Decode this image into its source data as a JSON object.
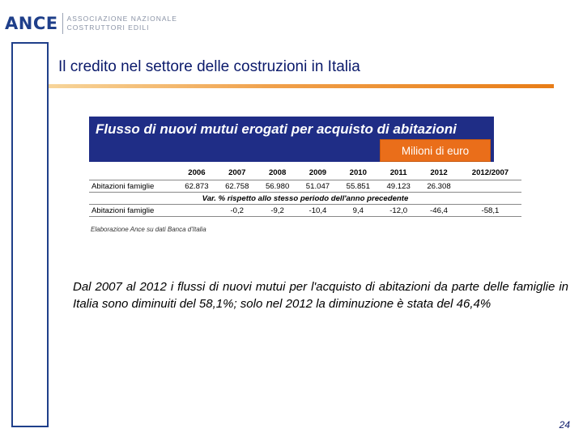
{
  "logo": {
    "mark": "ANCE",
    "line1": "ASSOCIAZIONE NAZIONALE",
    "line2": "COSTRUTTORI EDILI"
  },
  "slide": {
    "title": "Il credito nel settore delle costruzioni in Italia",
    "page_number": "24"
  },
  "table": {
    "title": "Flusso di nuovi mutui erogati per acquisto di abitazioni",
    "unit": "Milioni di euro",
    "columns": [
      "",
      "2006",
      "2007",
      "2008",
      "2009",
      "2010",
      "2011",
      "2012",
      "2012/2007"
    ],
    "rows": [
      {
        "label": "Abitazioni famiglie",
        "values": [
          "62.873",
          "62.758",
          "56.980",
          "51.047",
          "55.851",
          "49.123",
          "26.308",
          ""
        ]
      }
    ],
    "subheader": "Var. % rispetto allo stesso periodo dell'anno precedente",
    "var_rows": [
      {
        "label": "Abitazioni famiglie",
        "values": [
          "",
          "-0,2",
          "-9,2",
          "-10,4",
          "9,4",
          "-12,0",
          "-46,4",
          "-58,1"
        ]
      }
    ],
    "source": "Elaborazione Ance su dati Banca d'Italia"
  },
  "commentary": "Dal 2007 al 2012 i flussi di nuovi mutui per l'acquisto di abitazioni da parte delle famiglie in Italia sono diminuiti del 58,1%; solo nel 2012 la diminuzione è stata del 46,4%",
  "colors": {
    "navy": "#1f2d86",
    "orange": "#ea6e1a",
    "title_text": "#0b1a6b"
  }
}
